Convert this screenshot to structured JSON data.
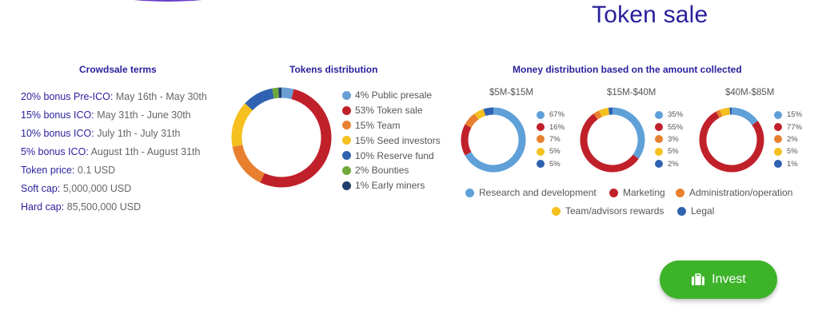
{
  "title": "Token sale",
  "crowdsale": {
    "heading": "Crowdsale terms",
    "rows": [
      {
        "label": "20% bonus Pre-ICO:",
        "value": "May 16th - May 30th"
      },
      {
        "label": "15% bonus ICO:",
        "value": "May 31th - June 30th"
      },
      {
        "label": "10% bonus ICO:",
        "value": "July 1th - July 31th"
      },
      {
        "label": "5% bonus ICO:",
        "value": "August 1th - August 31th"
      },
      {
        "label": "Token price:",
        "value": "0.1 USD"
      },
      {
        "label": "Soft cap:",
        "value": "5,000,000 USD"
      },
      {
        "label": "Hard cap:",
        "value": "85,500,000 USD"
      }
    ]
  },
  "tokens": {
    "heading": "Tokens distribution",
    "legend": [
      "4% Public presale",
      "53% Token sale",
      "15% Team",
      "15% Seed investors",
      "10% Reserve fund",
      "2% Bounties",
      "1% Early miners"
    ]
  },
  "money": {
    "heading": "Money distribution based on the amount collected",
    "ranges": [
      {
        "label": "$5M-$15M",
        "legend": [
          "67%",
          "16%",
          "7%",
          "5%",
          "5%"
        ]
      },
      {
        "label": "$15M-$40M",
        "legend": [
          "35%",
          "55%",
          "3%",
          "5%",
          "2%"
        ]
      },
      {
        "label": "$40M-$85M",
        "legend": [
          "15%",
          "77%",
          "2%",
          "5%",
          "1%"
        ]
      }
    ],
    "categories": [
      "Research and development",
      "Marketing",
      "Administration/operation",
      "Team/advisors rewards",
      "Legal"
    ]
  },
  "invest_label": "Invest",
  "chart_data": [
    {
      "type": "pie",
      "title": "Tokens distribution",
      "categories": [
        "Public presale",
        "Token sale",
        "Team",
        "Seed investors",
        "Reserve fund",
        "Bounties",
        "Early miners"
      ],
      "values": [
        4,
        53,
        15,
        15,
        10,
        2,
        1
      ],
      "colors": [
        "#6a9fd4",
        "#c0202a",
        "#e8802f",
        "#f5c020",
        "#2f62b0",
        "#70a83a",
        "#1f3f6e"
      ]
    },
    {
      "type": "pie",
      "title": "$5M-$15M",
      "categories": [
        "Research and development",
        "Marketing",
        "Administration/operation",
        "Team/advisors rewards",
        "Legal"
      ],
      "values": [
        67,
        16,
        7,
        5,
        5
      ],
      "colors": [
        "#5fa0d8",
        "#c0202a",
        "#e8802f",
        "#f5c020",
        "#2f62b0"
      ]
    },
    {
      "type": "pie",
      "title": "$15M-$40M",
      "categories": [
        "Research and development",
        "Marketing",
        "Administration/operation",
        "Team/advisors rewards",
        "Legal"
      ],
      "values": [
        35,
        55,
        3,
        5,
        2
      ],
      "colors": [
        "#5fa0d8",
        "#c0202a",
        "#e8802f",
        "#f5c020",
        "#2f62b0"
      ]
    },
    {
      "type": "pie",
      "title": "$40M-$85M",
      "categories": [
        "Research and development",
        "Marketing",
        "Administration/operation",
        "Team/advisors rewards",
        "Legal"
      ],
      "values": [
        15,
        77,
        2,
        5,
        1
      ],
      "colors": [
        "#5fa0d8",
        "#c0202a",
        "#e8802f",
        "#f5c020",
        "#2f62b0"
      ]
    }
  ]
}
